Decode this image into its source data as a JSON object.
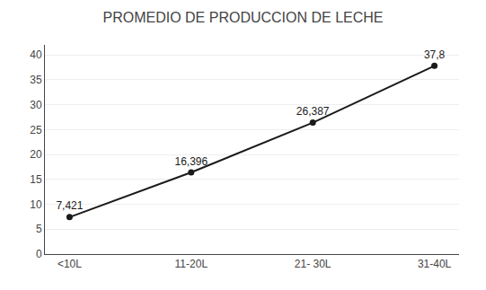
{
  "chart_data": {
    "type": "line",
    "title": "PROMEDIO DE PRODUCCION DE LECHE",
    "categories": [
      "<10L",
      "11-20L",
      "21- 30L",
      "31-40L"
    ],
    "values": [
      7.421,
      16.396,
      26.387,
      37.8
    ],
    "value_labels": [
      "7,421",
      "16,396",
      "26,387",
      "37,8"
    ],
    "color": "#1a1a1a",
    "marker": "circle",
    "ylim": [
      0,
      42
    ],
    "yticks": [
      0,
      5,
      10,
      15,
      20,
      25,
      30,
      35,
      40
    ],
    "grid": true,
    "data_labels": true
  }
}
